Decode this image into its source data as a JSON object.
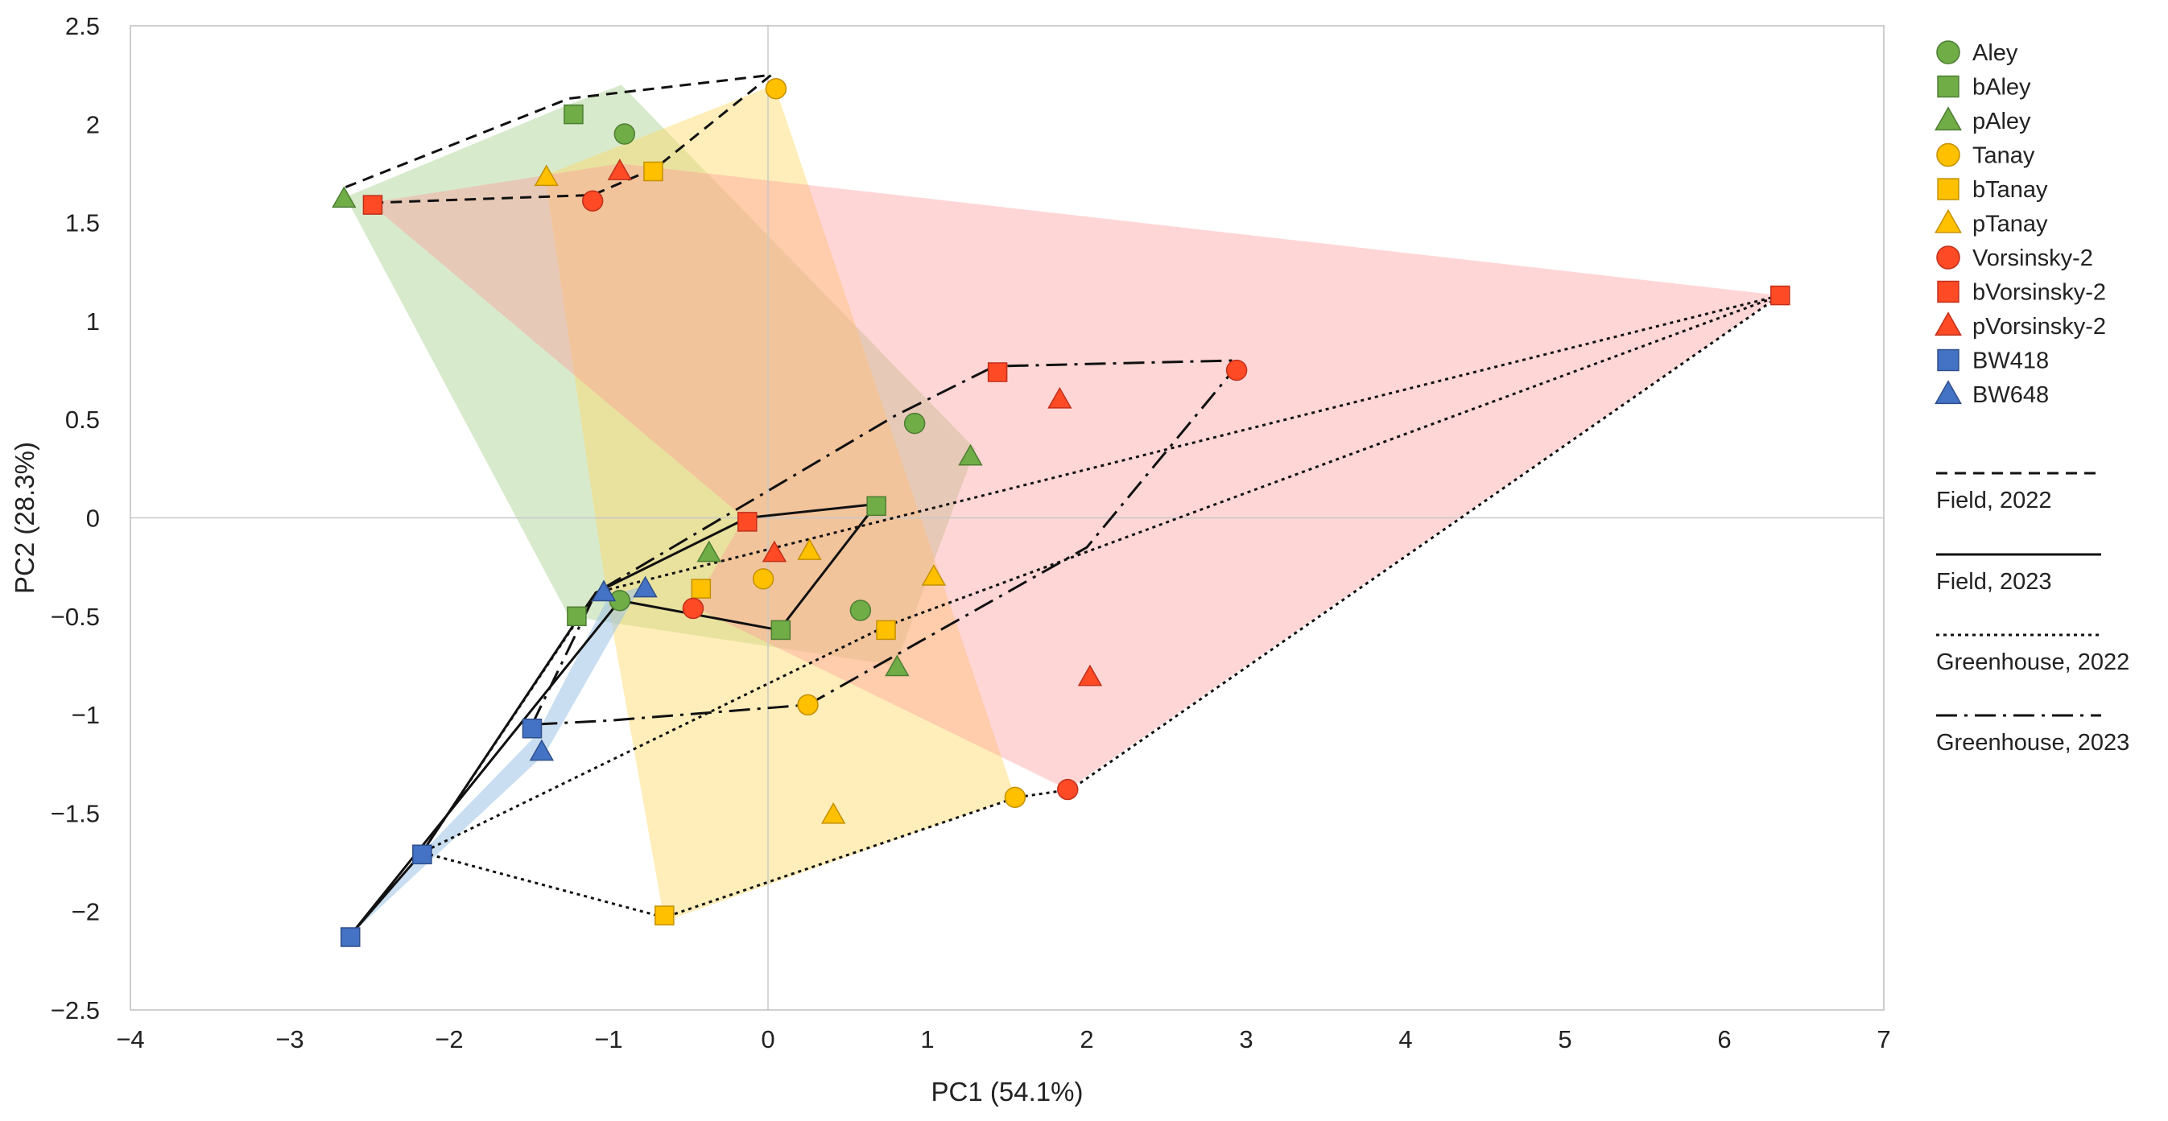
{
  "chart_data": {
    "type": "scatter",
    "xlabel": "PC1 (54.1%)",
    "ylabel": "PC2 (28.3%)",
    "xlim": [
      -4,
      7
    ],
    "ylim": [
      -2.5,
      2.5
    ],
    "xticks": [
      -4,
      -3,
      -2,
      -1,
      0,
      1,
      2,
      3,
      4,
      5,
      6,
      7
    ],
    "yticks": [
      -2.5,
      -2,
      -1.5,
      -1,
      -0.5,
      0,
      0.5,
      1,
      1.5,
      2,
      2.5
    ],
    "xtick_labels": [
      "−4",
      "−3",
      "−2",
      "−1",
      "0",
      "1",
      "2",
      "3",
      "4",
      "5",
      "6",
      "7"
    ],
    "ytick_labels": [
      "−2.5",
      "−2",
      "−1.5",
      "−1",
      "−0.5",
      "0",
      "0.5",
      "1",
      "1.5",
      "2",
      "2.5"
    ],
    "zero_lines": true,
    "legend_position": "right",
    "colors": {
      "green": "#70ad47",
      "green_edge": "#4e7d33",
      "yellow": "#ffc000",
      "yellow_edge": "#c49000",
      "red": "#ff4a26",
      "red_edge": "#c0301a",
      "blue": "#4472c4",
      "blue_edge": "#2e4f8a"
    },
    "hulls": [
      {
        "name": "green-hull",
        "color": "#a9d18e",
        "opacity": 0.45,
        "points": [
          [
            -2.65,
            1.63
          ],
          [
            -1.25,
            2.1
          ],
          [
            -0.92,
            2.2
          ],
          [
            1.3,
            0.35
          ],
          [
            0.8,
            -0.75
          ],
          [
            -1.25,
            -0.5
          ]
        ]
      },
      {
        "name": "yellow-hull",
        "color": "#ffd966",
        "opacity": 0.45,
        "points": [
          [
            -1.4,
            1.74
          ],
          [
            0.04,
            2.2
          ],
          [
            1.55,
            -1.42
          ],
          [
            -0.65,
            -2.05
          ],
          [
            -1.0,
            -0.45
          ]
        ]
      },
      {
        "name": "red-hull",
        "color": "#ff9999",
        "opacity": 0.4,
        "points": [
          [
            -2.5,
            1.6
          ],
          [
            -0.93,
            1.8
          ],
          [
            6.35,
            1.13
          ],
          [
            1.88,
            -1.38
          ],
          [
            -0.47,
            -0.45
          ],
          [
            -0.15,
            0.0
          ]
        ]
      },
      {
        "name": "blue-hull",
        "color": "#9dc3e6",
        "opacity": 0.55,
        "points": [
          [
            -2.62,
            -2.12
          ],
          [
            -2.17,
            -1.7
          ],
          [
            -1.45,
            -1.1
          ],
          [
            -1.0,
            -0.4
          ],
          [
            -0.8,
            -0.35
          ],
          [
            -1.4,
            -1.2
          ]
        ]
      }
    ],
    "lines": [
      {
        "name": "Field, 2022",
        "dash": "14,9",
        "points": [
          [
            -2.65,
            1.68
          ],
          [
            -1.25,
            2.13
          ],
          [
            0.02,
            2.25
          ],
          [
            -0.7,
            1.78
          ],
          [
            -1.1,
            1.64
          ],
          [
            -2.5,
            1.6
          ]
        ]
      },
      {
        "name": "Field, 2023",
        "dash": "",
        "points": [
          [
            -2.62,
            -2.12
          ],
          [
            -2.17,
            -1.7
          ],
          [
            -1.2,
            -0.52
          ],
          [
            -1.08,
            -0.38
          ],
          [
            -0.13,
            0.0
          ],
          [
            0.68,
            0.07
          ],
          [
            0.07,
            -0.57
          ],
          [
            -0.93,
            -0.42
          ],
          [
            -2.62,
            -2.12
          ]
        ]
      },
      {
        "name": "Greenhouse, 2022",
        "dash": "4,5",
        "points": [
          [
            -2.17,
            -1.7
          ],
          [
            -1.08,
            -0.38
          ],
          [
            6.35,
            1.13
          ],
          [
            1.9,
            -1.38
          ],
          [
            1.56,
            -1.42
          ],
          [
            -0.65,
            -2.03
          ],
          [
            -2.17,
            -1.7
          ],
          [
            0.74,
            -0.55
          ],
          [
            6.35,
            1.13
          ]
        ]
      },
      {
        "name": "Greenhouse, 2023",
        "dash": "26,9,4,9",
        "points": [
          [
            -1.48,
            -1.05
          ],
          [
            -1.08,
            -0.38
          ],
          [
            0.8,
            0.52
          ],
          [
            1.42,
            0.77
          ],
          [
            2.95,
            0.8
          ],
          [
            2.92,
            0.75
          ],
          [
            2.0,
            -0.15
          ],
          [
            0.25,
            -0.95
          ],
          [
            -1.0,
            -1.03
          ],
          [
            -1.48,
            -1.05
          ]
        ]
      }
    ],
    "series": [
      {
        "name": "Aley",
        "marker": "circle",
        "color": "#70ad47",
        "edge": "#4e7d33",
        "points": [
          [
            -0.9,
            1.95
          ],
          [
            0.92,
            0.48
          ],
          [
            -0.93,
            -0.42
          ],
          [
            0.58,
            -0.47
          ]
        ]
      },
      {
        "name": "bAley",
        "marker": "square",
        "color": "#70ad47",
        "edge": "#4e7d33",
        "points": [
          [
            -1.22,
            2.05
          ],
          [
            0.68,
            0.06
          ],
          [
            -1.2,
            -0.5
          ],
          [
            0.08,
            -0.57
          ]
        ]
      },
      {
        "name": "pAley",
        "marker": "triangle",
        "color": "#70ad47",
        "edge": "#4e7d33",
        "points": [
          [
            -2.66,
            1.62
          ],
          [
            1.27,
            0.31
          ],
          [
            -0.37,
            -0.18
          ],
          [
            0.81,
            -0.76
          ]
        ]
      },
      {
        "name": "Tanay",
        "marker": "circle",
        "color": "#ffc000",
        "edge": "#c49000",
        "points": [
          [
            0.05,
            2.18
          ],
          [
            -0.03,
            -0.31
          ],
          [
            0.25,
            -0.95
          ],
          [
            1.55,
            -1.42
          ]
        ]
      },
      {
        "name": "bTanay",
        "marker": "square",
        "color": "#ffc000",
        "edge": "#c49000",
        "points": [
          [
            -0.72,
            1.76
          ],
          [
            -0.42,
            -0.36
          ],
          [
            0.74,
            -0.57
          ],
          [
            -0.65,
            -2.02
          ]
        ]
      },
      {
        "name": "pTanay",
        "marker": "triangle",
        "color": "#ffc000",
        "edge": "#c49000",
        "points": [
          [
            -1.39,
            1.73
          ],
          [
            0.26,
            -0.17
          ],
          [
            1.04,
            -0.3
          ],
          [
            0.41,
            -1.51
          ]
        ]
      },
      {
        "name": "Vorsinsky-2",
        "marker": "circle",
        "color": "#ff4a26",
        "edge": "#c0301a",
        "points": [
          [
            -1.1,
            1.61
          ],
          [
            2.94,
            0.75
          ],
          [
            -0.47,
            -0.46
          ],
          [
            1.88,
            -1.38
          ]
        ]
      },
      {
        "name": "bVorsinsky-2",
        "marker": "square",
        "color": "#ff4a26",
        "edge": "#c0301a",
        "points": [
          [
            -2.48,
            1.59
          ],
          [
            6.35,
            1.13
          ],
          [
            1.44,
            0.74
          ],
          [
            -0.13,
            -0.02
          ]
        ]
      },
      {
        "name": "pVorsinsky-2",
        "marker": "triangle",
        "color": "#ff4a26",
        "edge": "#c0301a",
        "points": [
          [
            -0.93,
            1.76
          ],
          [
            1.83,
            0.6
          ],
          [
            0.04,
            -0.18
          ],
          [
            2.02,
            -0.81
          ]
        ]
      },
      {
        "name": "BW418",
        "marker": "square",
        "color": "#4472c4",
        "edge": "#2e4f8a",
        "points": [
          [
            -1.48,
            -1.07
          ],
          [
            -2.17,
            -1.71
          ],
          [
            -2.62,
            -2.13
          ]
        ]
      },
      {
        "name": "BW648",
        "marker": "triangle",
        "color": "#4472c4",
        "edge": "#2e4f8a",
        "points": [
          [
            -1.42,
            -1.19
          ],
          [
            -1.03,
            -0.38
          ],
          [
            -0.77,
            -0.36
          ]
        ]
      }
    ],
    "line_legend": [
      {
        "label": "Field, 2022",
        "dash": "14,9"
      },
      {
        "label": "Field, 2023",
        "dash": ""
      },
      {
        "label": "Greenhouse, 2022",
        "dash": "4,5"
      },
      {
        "label": "Greenhouse, 2023",
        "dash": "26,9,4,9"
      }
    ]
  }
}
